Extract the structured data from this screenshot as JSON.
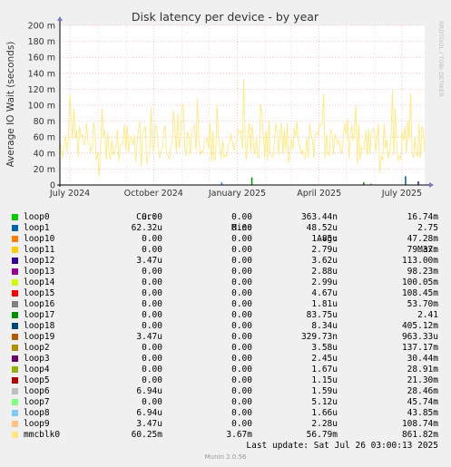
{
  "chart_data": {
    "type": "line",
    "title": "Disk latency per device - by year",
    "ylabel": "Average IO Wait (seconds)",
    "side_label": "RRDTOOL / TOBI OETIKER",
    "yticks": [
      "0",
      "20 m",
      "40 m",
      "60 m",
      "80 m",
      "100 m",
      "120 m",
      "140 m",
      "160 m",
      "180 m",
      "200 m"
    ],
    "ytick_values": [
      0,
      0.02,
      0.04,
      0.06,
      0.08,
      0.1,
      0.12,
      0.14,
      0.16,
      0.18,
      0.2
    ],
    "ylim": [
      0,
      0.2
    ],
    "xticks": [
      "July 2024",
      "October 2024",
      "January 2025",
      "April 2025",
      "July 2025"
    ],
    "xlim": [
      "2024-06-20",
      "2025-07-26"
    ],
    "xtick_dates": [
      "2024-07-01",
      "2024-10-01",
      "2025-01-01",
      "2025-04-01",
      "2025-07-01"
    ],
    "grid": true,
    "series_main": {
      "name": "mmcblk0",
      "color": "#ffe97f",
      "typical_low": 0.03,
      "typical_high": 0.08,
      "peak": 0.133
    },
    "spikes": [
      {
        "name": "loop1",
        "color": "#1e90ff",
        "date": "2024-12-15",
        "value": 0.0035
      },
      {
        "name": "loop17",
        "color": "#008f00",
        "date": "2025-01-17",
        "value": 0.0095
      },
      {
        "name": "loop18",
        "color": "#005f7f",
        "date": "2025-07-05",
        "value": 0.011
      },
      {
        "name": "loop12",
        "color": "#1a1a9f",
        "date": "2025-07-19",
        "value": 0.0045
      },
      {
        "name": "loop17",
        "color": "#008f00",
        "date": "2025-05-20",
        "value": 0.0035
      },
      {
        "name": "loop6",
        "color": "#a0a0a0",
        "date": "2025-05-28",
        "value": 0.002
      }
    ]
  },
  "legend": {
    "headers": {
      "cur": "Cur:",
      "min": "Min:",
      "avg": "Avg:",
      "max": "Max:"
    },
    "rows": [
      {
        "name": "loop0",
        "color": "#00cc00",
        "cur": "0.00",
        "min": "0.00",
        "avg": "363.44n",
        "max": "16.74m"
      },
      {
        "name": "loop1",
        "color": "#0066b3",
        "cur": "62.32u",
        "min": "0.00",
        "avg": "48.52u",
        "max": "2.75"
      },
      {
        "name": "loop10",
        "color": "#ff8000",
        "cur": "0.00",
        "min": "0.00",
        "avg": "1.85u",
        "max": "47.28m"
      },
      {
        "name": "loop11",
        "color": "#ffcc00",
        "cur": "0.00",
        "min": "0.00",
        "avg": "2.79u",
        "max": "79.37m"
      },
      {
        "name": "loop12",
        "color": "#330099",
        "cur": "3.47u",
        "min": "0.00",
        "avg": "3.62u",
        "max": "113.00m"
      },
      {
        "name": "loop13",
        "color": "#990099",
        "cur": "0.00",
        "min": "0.00",
        "avg": "2.88u",
        "max": "98.23m"
      },
      {
        "name": "loop14",
        "color": "#ccff00",
        "cur": "0.00",
        "min": "0.00",
        "avg": "2.99u",
        "max": "100.05m"
      },
      {
        "name": "loop15",
        "color": "#ff0000",
        "cur": "0.00",
        "min": "0.00",
        "avg": "4.67u",
        "max": "108.45m"
      },
      {
        "name": "loop16",
        "color": "#808080",
        "cur": "0.00",
        "min": "0.00",
        "avg": "1.81u",
        "max": "53.70m"
      },
      {
        "name": "loop17",
        "color": "#008f00",
        "cur": "0.00",
        "min": "0.00",
        "avg": "83.75u",
        "max": "2.41"
      },
      {
        "name": "loop18",
        "color": "#00487d",
        "cur": "0.00",
        "min": "0.00",
        "avg": "8.34u",
        "max": "405.12m"
      },
      {
        "name": "loop19",
        "color": "#b35a00",
        "cur": "3.47u",
        "min": "0.00",
        "avg": "329.73n",
        "max": "963.33u"
      },
      {
        "name": "loop2",
        "color": "#b38f00",
        "cur": "0.00",
        "min": "0.00",
        "avg": "3.58u",
        "max": "137.17m"
      },
      {
        "name": "loop3",
        "color": "#6b006b",
        "cur": "0.00",
        "min": "0.00",
        "avg": "2.45u",
        "max": "30.44m"
      },
      {
        "name": "loop4",
        "color": "#8fb300",
        "cur": "0.00",
        "min": "0.00",
        "avg": "1.67u",
        "max": "28.91m"
      },
      {
        "name": "loop5",
        "color": "#b30000",
        "cur": "0.00",
        "min": "0.00",
        "avg": "1.15u",
        "max": "21.30m"
      },
      {
        "name": "loop6",
        "color": "#bebebe",
        "cur": "6.94u",
        "min": "0.00",
        "avg": "1.59u",
        "max": "28.46m"
      },
      {
        "name": "loop7",
        "color": "#80ff80",
        "cur": "0.00",
        "min": "0.00",
        "avg": "5.12u",
        "max": "45.74m"
      },
      {
        "name": "loop8",
        "color": "#80c9ff",
        "cur": "6.94u",
        "min": "0.00",
        "avg": "1.66u",
        "max": "43.85m"
      },
      {
        "name": "loop9",
        "color": "#ffc080",
        "cur": "3.47u",
        "min": "0.00",
        "avg": "2.28u",
        "max": "108.74m"
      },
      {
        "name": "mmcblk0",
        "color": "#ffe680",
        "cur": "60.25m",
        "min": "3.67m",
        "avg": "56.79m",
        "max": "861.82m"
      }
    ]
  },
  "footer": {
    "last_update": "Last update: Sat Jul 26 03:00:13 2025",
    "munin": "Munin 2.0.56"
  }
}
